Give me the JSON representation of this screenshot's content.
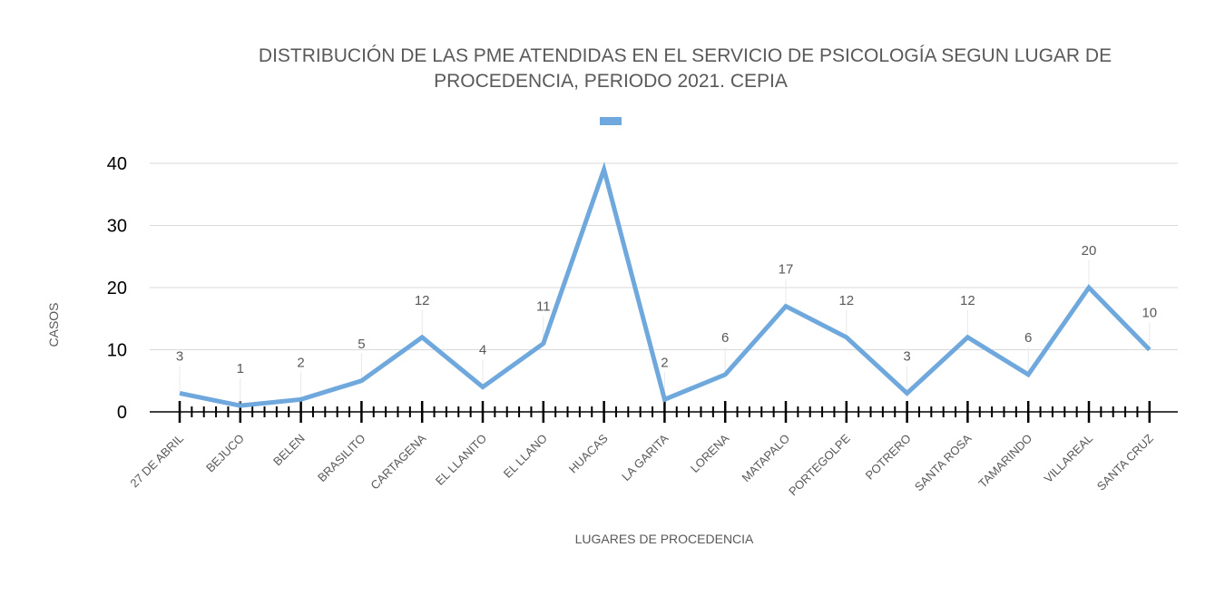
{
  "chart_data": {
    "type": "line",
    "title_lines": [
      "DISTRIBUCIÓN DE LAS PME ATENDIDAS EN EL SERVICIO DE PSICOLOGÍA SEGUN LUGAR DE",
      "PROCEDENCIA, PERIODO  2021. CEPIA"
    ],
    "xlabel": "LUGARES DE PROCEDENCIA",
    "ylabel": "CASOS",
    "ylim": [
      0,
      40
    ],
    "yticks": [
      0,
      10,
      20,
      30,
      40
    ],
    "grid": true,
    "legend": {
      "position": "top-center",
      "entries": [
        ""
      ]
    },
    "categories": [
      "27 DE ABRIL",
      "BEJUCO",
      "BELEN",
      "BRASILITO",
      "CARTAGENA",
      "EL LLANITO",
      "EL LLANO",
      "HUACAS",
      "LA GARITA",
      "LORENA",
      "MATAPALO",
      "PORTEGOLPE",
      "POTRERO",
      "SANTA ROSA",
      "TAMARINDO",
      "VILLAREAL",
      "SANTA CRUZ"
    ],
    "series": [
      {
        "name": "",
        "color": "#6fa8dc",
        "values": [
          3,
          1,
          2,
          5,
          12,
          4,
          11,
          39,
          2,
          6,
          17,
          12,
          3,
          12,
          6,
          20,
          10
        ],
        "labels": [
          "3",
          "1",
          "2",
          "5",
          "12",
          "4",
          "11",
          "",
          "2",
          "6",
          "17",
          "12",
          "3",
          "12",
          "6",
          "20",
          "10"
        ]
      }
    ]
  }
}
